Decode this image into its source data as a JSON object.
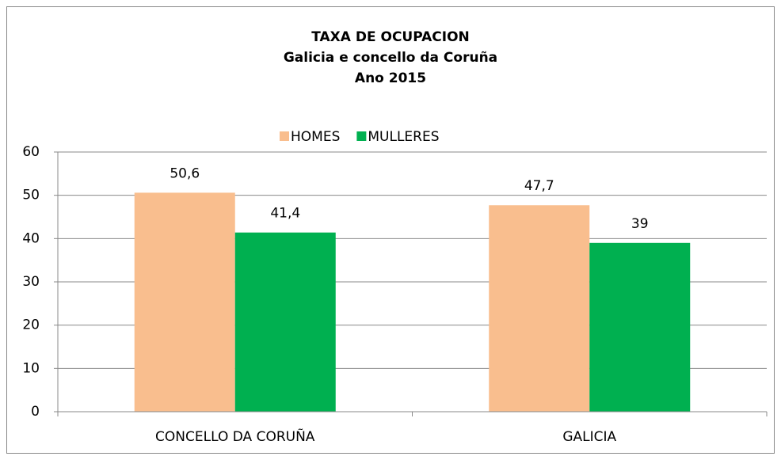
{
  "chart_data": {
    "type": "bar",
    "title": [
      "TAXA DE OCUPACION",
      "Galicia e concello da Coruña",
      "Ano 2015"
    ],
    "categories": [
      "CONCELLO DA CORUÑA",
      "GALICIA"
    ],
    "series": [
      {
        "name": "HOMES",
        "color": "#f9be8e",
        "values": [
          50.6,
          47.7
        ],
        "value_labels": [
          "50,6",
          "47,7"
        ]
      },
      {
        "name": "MULLERES",
        "color": "#00b050",
        "values": [
          41.4,
          39
        ],
        "value_labels": [
          "41,4",
          "39"
        ]
      }
    ],
    "ylim": [
      0,
      60
    ],
    "yticks": [
      0,
      10,
      20,
      30,
      40,
      50,
      60
    ],
    "grid": true,
    "legend": "top"
  }
}
